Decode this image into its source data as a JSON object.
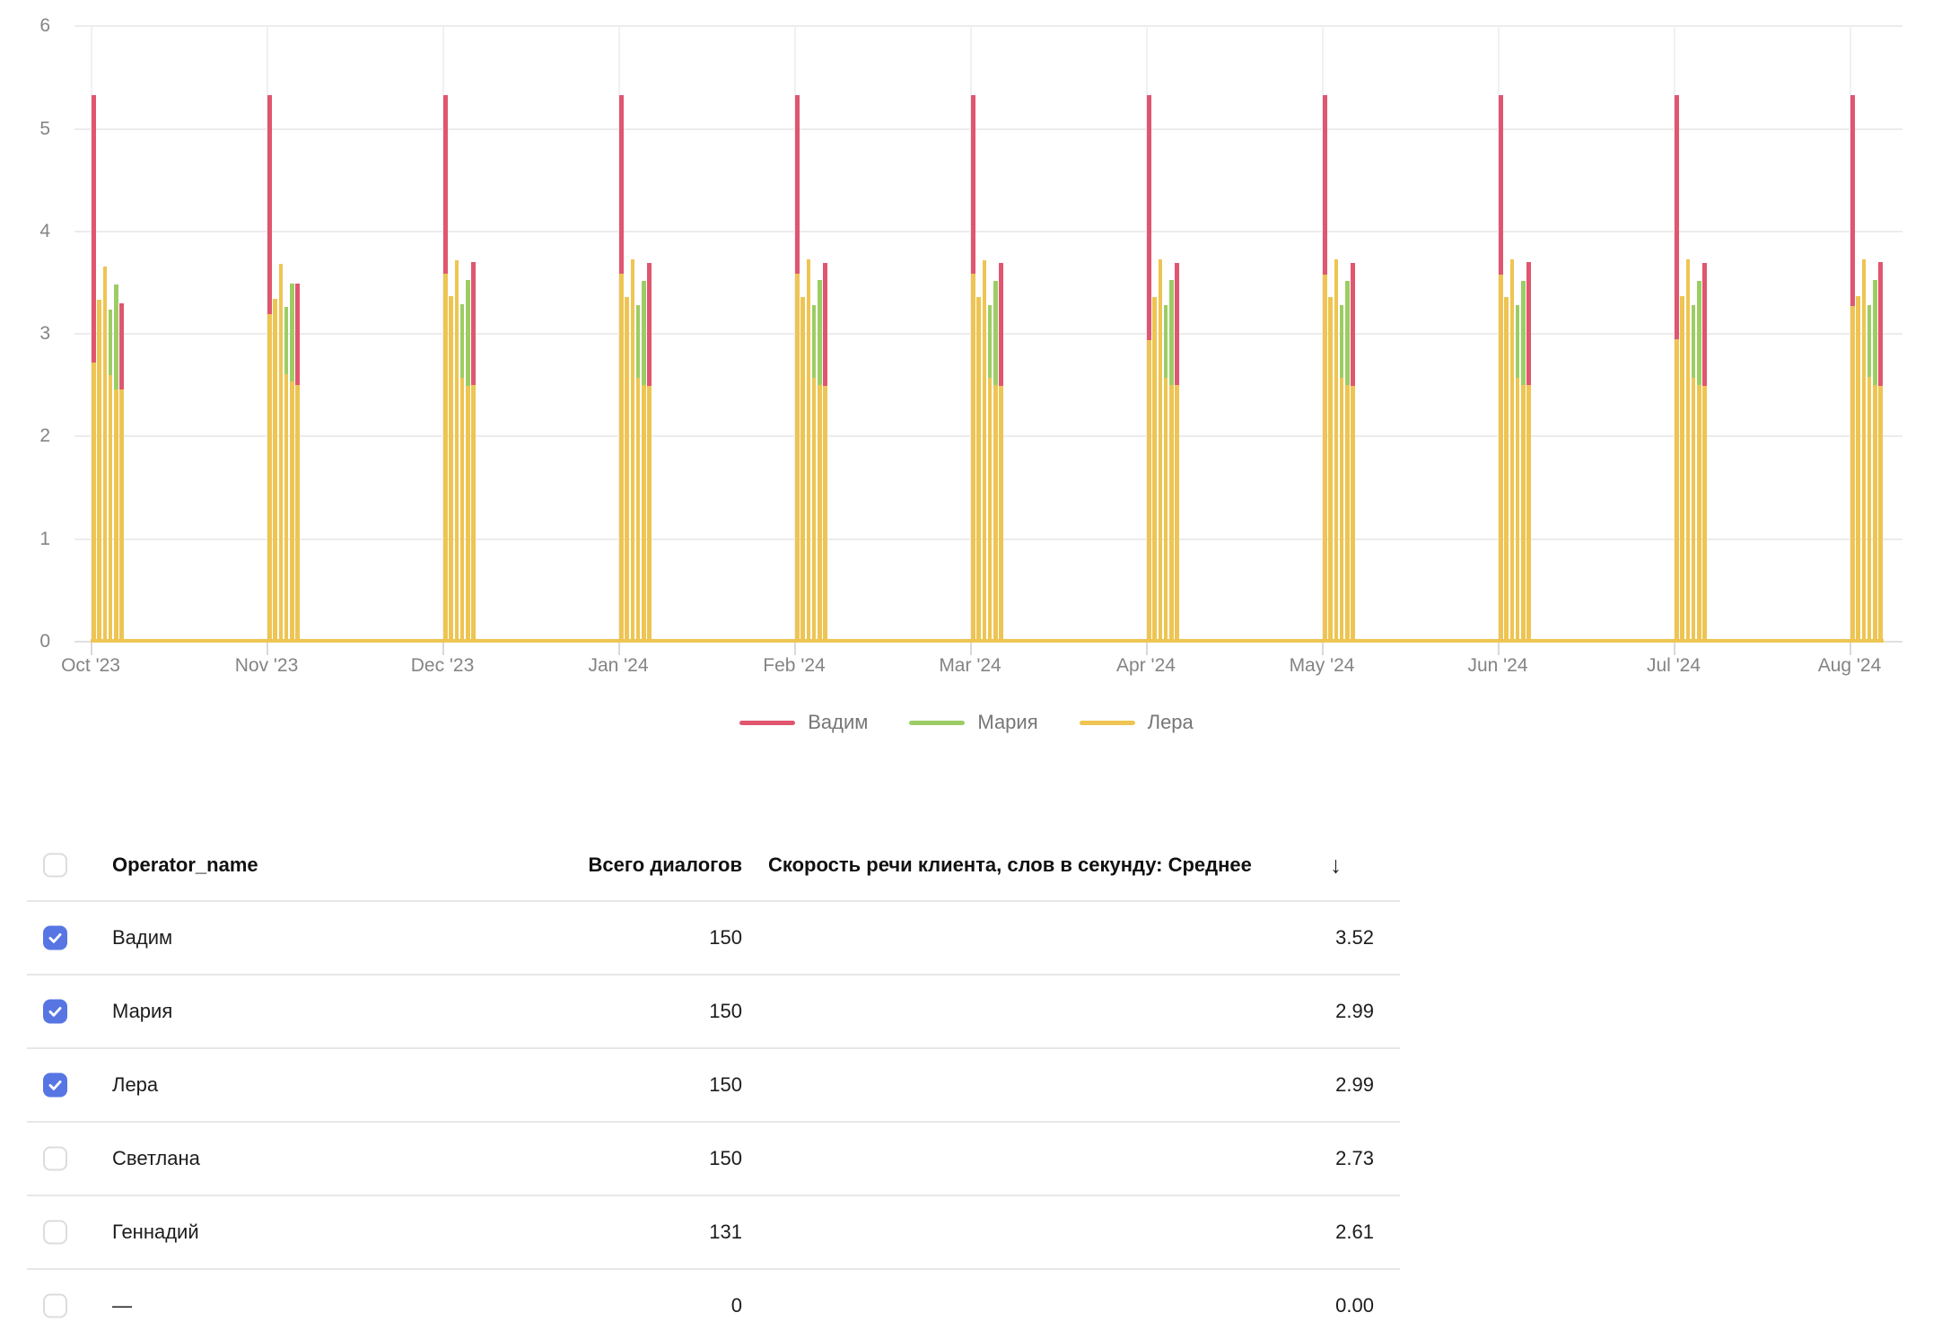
{
  "colors": {
    "vadim_red": "#e0566f",
    "maria_green": "#9ccd65",
    "lera_yellow": "#eec553",
    "checkbox_blue": "#5776e3",
    "axis_text": "#848484",
    "legend_text": "#767676"
  },
  "chart_data": {
    "type": "bar",
    "title": "",
    "xlabel": "",
    "ylabel": "",
    "ylim": [
      0,
      6
    ],
    "y_ticks": [
      "0",
      "1",
      "2",
      "3",
      "4",
      "5",
      "6"
    ],
    "x_tick_labels": [
      "Oct '23",
      "Nov '23",
      "Dec '23",
      "Jan '24",
      "Feb '24",
      "Mar '24",
      "Apr '24",
      "May '24",
      "Jun '24",
      "Jul '24",
      "Aug '24"
    ],
    "grid": true,
    "legend_position": "bottom",
    "series": [
      {
        "key": "v",
        "name": "Вадим",
        "color_key": "vadim_red"
      },
      {
        "key": "m",
        "name": "Мария",
        "color_key": "maria_green"
      },
      {
        "key": "l",
        "name": "Лера",
        "color_key": "lera_yellow"
      }
    ],
    "note": "Each month cluster has 6 thin bars; 'front' is a Лера (yellow) bar drawn in front of the taller bar at the same x; zero_line is the Лера series at ~0 across all dates",
    "clusters": [
      {
        "month": "Oct '23",
        "bars": [
          {
            "s": "v",
            "val": 5.33,
            "front": 2.72
          },
          {
            "s": "l",
            "val": 3.33
          },
          {
            "s": "l",
            "val": 3.66
          },
          {
            "s": "m",
            "val": 3.24,
            "front": 2.6
          },
          {
            "s": "m",
            "val": 3.48,
            "front": 2.46
          },
          {
            "s": "v",
            "val": 3.3,
            "front": 2.46
          }
        ]
      },
      {
        "month": "Nov '23",
        "bars": [
          {
            "s": "v",
            "val": 5.33,
            "front": 3.19
          },
          {
            "s": "l",
            "val": 3.34
          },
          {
            "s": "l",
            "val": 3.68
          },
          {
            "s": "m",
            "val": 3.26,
            "front": 2.61
          },
          {
            "s": "m",
            "val": 3.49,
            "front": 2.54
          },
          {
            "s": "v",
            "val": 3.49,
            "front": 2.5
          }
        ]
      },
      {
        "month": "Dec '23",
        "bars": [
          {
            "s": "v",
            "val": 5.33,
            "front": 3.59
          },
          {
            "s": "l",
            "val": 3.37
          },
          {
            "s": "l",
            "val": 3.72
          },
          {
            "s": "m",
            "val": 3.29,
            "front": 2.57
          },
          {
            "s": "m",
            "val": 3.53,
            "front": 2.49
          },
          {
            "s": "v",
            "val": 3.7,
            "front": 2.5
          }
        ]
      },
      {
        "month": "Jan '24",
        "bars": [
          {
            "s": "v",
            "val": 5.33,
            "front": 3.59
          },
          {
            "s": "l",
            "val": 3.36
          },
          {
            "s": "l",
            "val": 3.73
          },
          {
            "s": "m",
            "val": 3.28,
            "front": 2.57
          },
          {
            "s": "m",
            "val": 3.52,
            "front": 2.5
          },
          {
            "s": "v",
            "val": 3.69,
            "front": 2.49
          }
        ]
      },
      {
        "month": "Feb '24",
        "bars": [
          {
            "s": "v",
            "val": 5.33,
            "front": 3.59
          },
          {
            "s": "l",
            "val": 3.36
          },
          {
            "s": "l",
            "val": 3.73
          },
          {
            "s": "m",
            "val": 3.28,
            "front": 2.57
          },
          {
            "s": "m",
            "val": 3.53,
            "front": 2.5
          },
          {
            "s": "v",
            "val": 3.69,
            "front": 2.49
          }
        ]
      },
      {
        "month": "Mar '24",
        "bars": [
          {
            "s": "v",
            "val": 5.33,
            "front": 3.59
          },
          {
            "s": "l",
            "val": 3.36
          },
          {
            "s": "l",
            "val": 3.72
          },
          {
            "s": "m",
            "val": 3.28,
            "front": 2.57
          },
          {
            "s": "m",
            "val": 3.52,
            "front": 2.5
          },
          {
            "s": "v",
            "val": 3.69,
            "front": 2.49
          }
        ]
      },
      {
        "month": "Apr '24",
        "bars": [
          {
            "s": "v",
            "val": 5.33,
            "front": 2.94
          },
          {
            "s": "l",
            "val": 3.36
          },
          {
            "s": "l",
            "val": 3.73
          },
          {
            "s": "m",
            "val": 3.28,
            "front": 2.57
          },
          {
            "s": "m",
            "val": 3.53,
            "front": 2.5
          },
          {
            "s": "v",
            "val": 3.69,
            "front": 2.5
          }
        ]
      },
      {
        "month": "May '24",
        "bars": [
          {
            "s": "v",
            "val": 5.33,
            "front": 3.58
          },
          {
            "s": "l",
            "val": 3.36
          },
          {
            "s": "l",
            "val": 3.73
          },
          {
            "s": "m",
            "val": 3.28,
            "front": 2.57
          },
          {
            "s": "m",
            "val": 3.52,
            "front": 2.5
          },
          {
            "s": "v",
            "val": 3.69,
            "front": 2.49
          }
        ]
      },
      {
        "month": "Jun '24",
        "bars": [
          {
            "s": "v",
            "val": 5.33,
            "front": 3.58
          },
          {
            "s": "l",
            "val": 3.36
          },
          {
            "s": "l",
            "val": 3.73
          },
          {
            "s": "m",
            "val": 3.28,
            "front": 2.57
          },
          {
            "s": "m",
            "val": 3.52,
            "front": 2.5
          },
          {
            "s": "v",
            "val": 3.7,
            "front": 2.5
          }
        ]
      },
      {
        "month": "Jul '24",
        "bars": [
          {
            "s": "v",
            "val": 5.33,
            "front": 2.95
          },
          {
            "s": "l",
            "val": 3.37
          },
          {
            "s": "l",
            "val": 3.73
          },
          {
            "s": "m",
            "val": 3.28,
            "front": 2.57
          },
          {
            "s": "m",
            "val": 3.52,
            "front": 2.5
          },
          {
            "s": "v",
            "val": 3.69,
            "front": 2.49
          }
        ]
      },
      {
        "month": "Aug '24",
        "bars": [
          {
            "s": "v",
            "val": 5.33,
            "front": 3.27
          },
          {
            "s": "l",
            "val": 3.37
          },
          {
            "s": "l",
            "val": 3.73
          },
          {
            "s": "m",
            "val": 3.28,
            "front": 2.58
          },
          {
            "s": "m",
            "val": 3.53,
            "front": 2.5
          },
          {
            "s": "v",
            "val": 3.7,
            "front": 2.49
          }
        ]
      }
    ],
    "zero_line_series": "l"
  },
  "legend": {
    "items": [
      {
        "label": "Вадим",
        "color_key": "vadim_red"
      },
      {
        "label": "Мария",
        "color_key": "maria_green"
      },
      {
        "label": "Лера",
        "color_key": "lera_yellow"
      }
    ]
  },
  "table": {
    "columns": {
      "name": "Operator_name",
      "dialogs": "Всего диалогов",
      "metric": "Скорость речи клиента, слов в секунду: Среднее"
    },
    "sort_arrow": "↓",
    "rows": [
      {
        "name": "Вадим",
        "dialogs": "150",
        "metric": "3.52",
        "checked": true
      },
      {
        "name": "Мария",
        "dialogs": "150",
        "metric": "2.99",
        "checked": true
      },
      {
        "name": "Лера",
        "dialogs": "150",
        "metric": "2.99",
        "checked": true
      },
      {
        "name": "Светлана",
        "dialogs": "150",
        "metric": "2.73",
        "checked": false
      },
      {
        "name": "Геннадий",
        "dialogs": "131",
        "metric": "2.61",
        "checked": false
      },
      {
        "name": "—",
        "dialogs": "0",
        "metric": "0.00",
        "checked": false
      }
    ]
  }
}
